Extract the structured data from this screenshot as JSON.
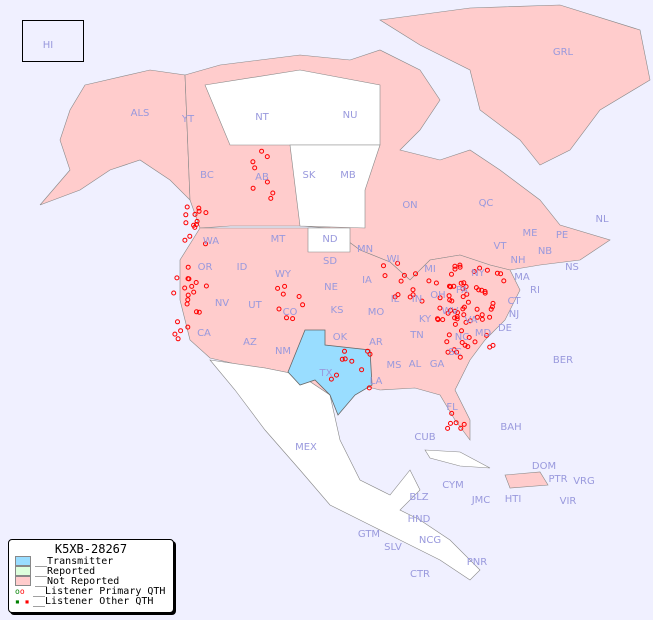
{
  "legend": {
    "title": "K5XB-28267",
    "items": [
      {
        "label": "__Transmitter",
        "color": "#99ddff"
      },
      {
        "label": "__Reported",
        "color": "#ddffdd"
      },
      {
        "label": "__Not Reported",
        "color": "#ffcccc"
      },
      {
        "label": "__Listener Primary QTH",
        "icon": "circle-marker"
      },
      {
        "label": "__Listener Other QTH",
        "icon": "square-marker"
      }
    ]
  },
  "colors": {
    "ocean": "#f0f0ff",
    "not_reported": "#ffcccc",
    "transmitter": "#99ddff",
    "unlisted": "#ffffff",
    "marker": "#ff0000",
    "label": "#9999dd"
  },
  "regions": [
    "HI",
    "GRL",
    "ALS",
    "YT",
    "NT",
    "NU",
    "BC",
    "AB",
    "SK",
    "MB",
    "ON",
    "QC",
    "NL",
    "NB",
    "NS",
    "PE",
    "WA",
    "OR",
    "ID",
    "MT",
    "ND",
    "WY",
    "SD",
    "MN",
    "WI",
    "MI",
    "NY",
    "VT",
    "NH",
    "ME",
    "MA",
    "CT",
    "RI",
    "NJ",
    "PA",
    "OH",
    "IN",
    "IL",
    "IA",
    "NE",
    "CO",
    "UT",
    "NV",
    "CA",
    "AZ",
    "NM",
    "KS",
    "MO",
    "KY",
    "WV",
    "VA",
    "MD",
    "DE",
    "TX",
    "OK",
    "AR",
    "TN",
    "NC",
    "SC",
    "GA",
    "AL",
    "MS",
    "LA",
    "FL",
    "MEX",
    "CUB",
    "BAH",
    "BER",
    "DOM",
    "PTR",
    "VRG",
    "CYM",
    "JMC",
    "HTI",
    "VIR",
    "BLZ",
    "HND",
    "GTM",
    "SLV",
    "NCG",
    "CTR",
    "PNR"
  ]
}
